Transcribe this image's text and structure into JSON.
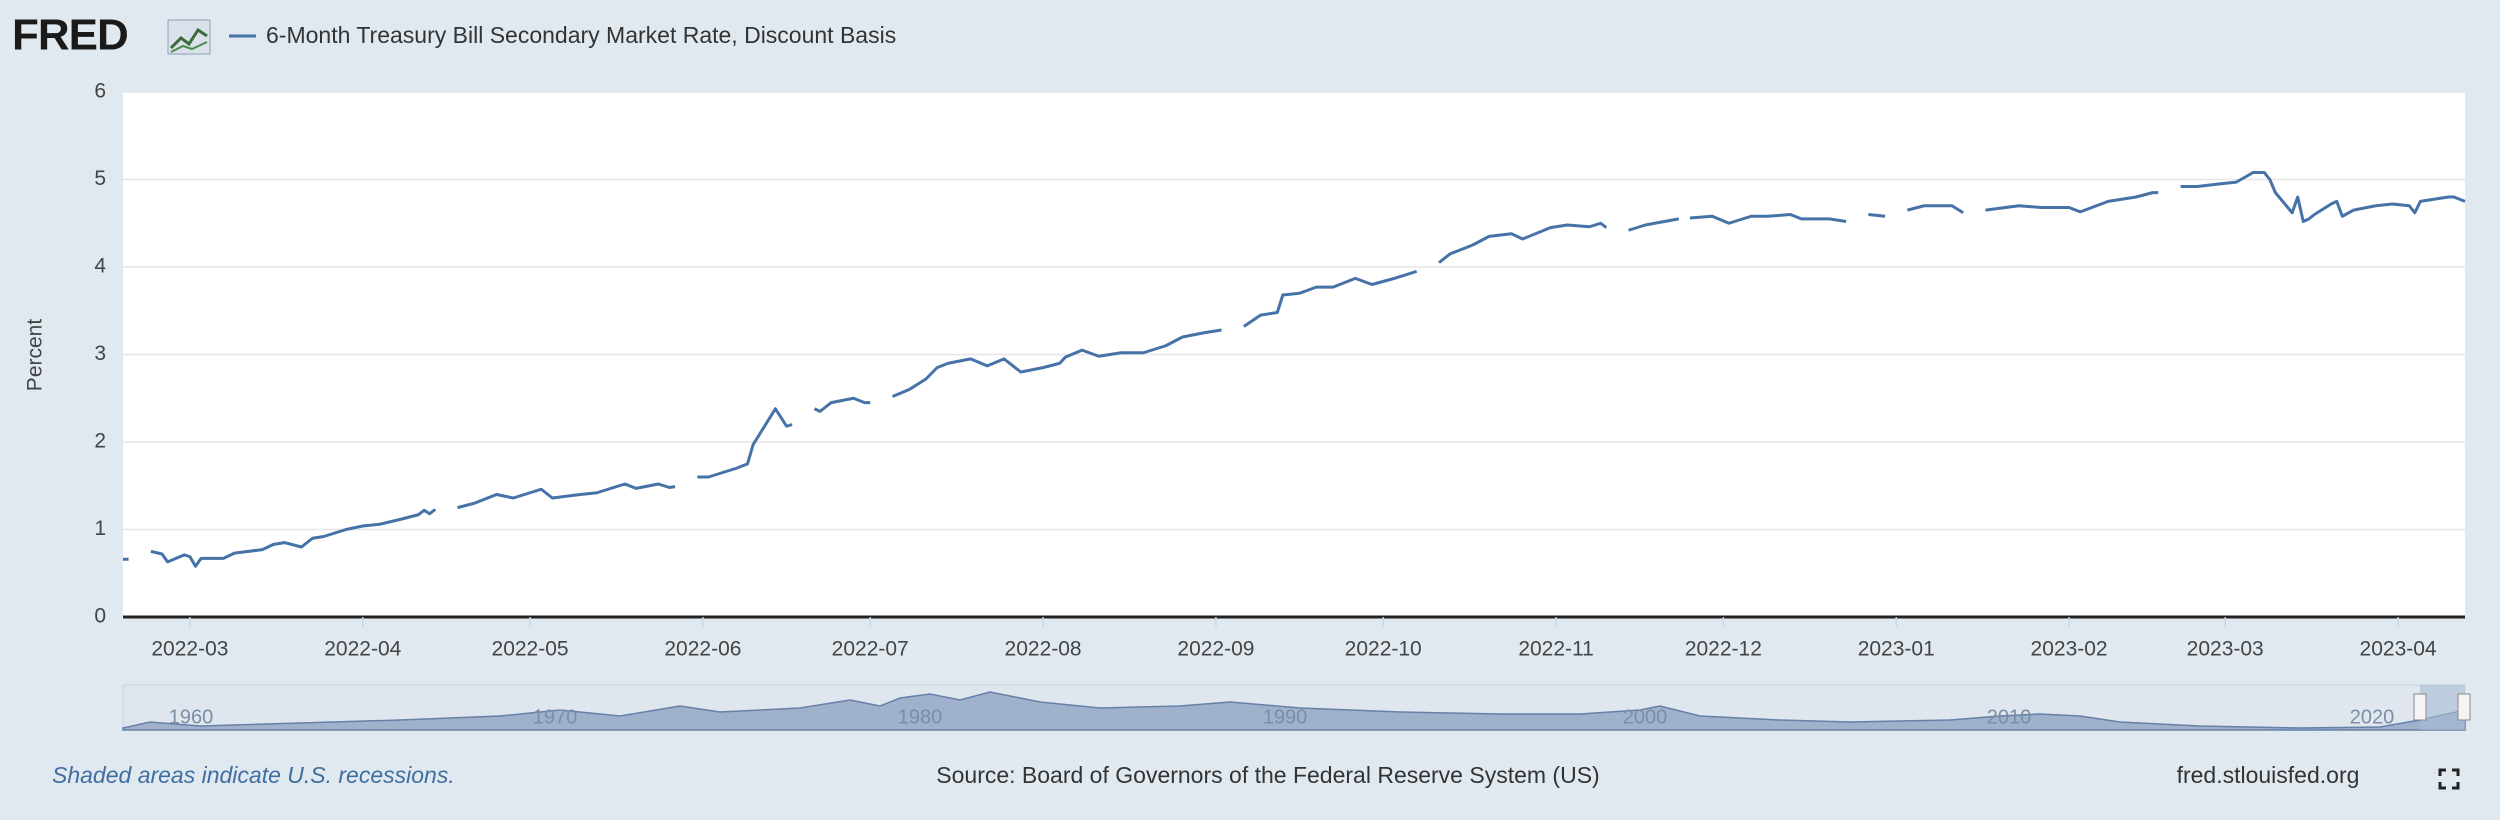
{
  "logo": "FRED",
  "footer": {
    "note": "Shaded areas indicate U.S. recessions.",
    "source": "Source: Board of Governors of the Federal Reserve System (US)",
    "site": "fred.stlouisfed.org"
  },
  "navigator": {
    "labels": [
      "1960",
      "1970",
      "1980",
      "1990",
      "2000",
      "2010",
      "2020"
    ]
  },
  "chart_data": {
    "type": "line",
    "y_label": "Percent",
    "grid": true,
    "xlim": [
      "2022-02-17",
      "2023-04-13"
    ],
    "xticks": [
      {
        "value": "2022-03",
        "label": "2022-03"
      },
      {
        "value": "2022-04",
        "label": "2022-04"
      },
      {
        "value": "2022-05",
        "label": "2022-05"
      },
      {
        "value": "2022-06",
        "label": "2022-06"
      },
      {
        "value": "2022-07",
        "label": "2022-07"
      },
      {
        "value": "2022-08",
        "label": "2022-08"
      },
      {
        "value": "2022-09",
        "label": "2022-09"
      },
      {
        "value": "2022-10",
        "label": "2022-10"
      },
      {
        "value": "2022-11",
        "label": "2022-11"
      },
      {
        "value": "2022-12",
        "label": "2022-12"
      },
      {
        "value": "2023-01",
        "label": "2023-01"
      },
      {
        "value": "2023-02",
        "label": "2023-02"
      },
      {
        "value": "2023-03",
        "label": "2023-03"
      },
      {
        "value": "2023-04",
        "label": "2023-04"
      }
    ],
    "ylim": [
      0,
      6
    ],
    "yticks": [
      0,
      1,
      2,
      3,
      4,
      5,
      6
    ],
    "x": [
      "2022-02-17",
      "2022-02-18",
      "2022-02-21",
      "2022-02-22",
      "2022-02-24",
      "2022-02-25",
      "2022-02-28",
      "2022-03-01",
      "2022-03-02",
      "2022-03-03",
      "2022-03-07",
      "2022-03-09",
      "2022-03-14",
      "2022-03-16",
      "2022-03-18",
      "2022-03-21",
      "2022-03-23",
      "2022-03-25",
      "2022-03-29",
      "2022-04-01",
      "2022-04-04",
      "2022-04-08",
      "2022-04-11",
      "2022-04-12",
      "2022-04-13",
      "2022-04-14",
      "2022-04-15",
      "2022-04-18",
      "2022-04-21",
      "2022-04-25",
      "2022-04-28",
      "2022-05-03",
      "2022-05-05",
      "2022-05-10",
      "2022-05-13",
      "2022-05-18",
      "2022-05-20",
      "2022-05-24",
      "2022-05-26",
      "2022-05-27",
      "2022-05-30",
      "2022-05-31",
      "2022-06-02",
      "2022-06-07",
      "2022-06-09",
      "2022-06-10",
      "2022-06-14",
      "2022-06-16",
      "2022-06-17",
      "2022-06-20",
      "2022-06-21",
      "2022-06-22",
      "2022-06-24",
      "2022-06-28",
      "2022-06-30",
      "2022-07-01",
      "2022-07-04",
      "2022-07-05",
      "2022-07-08",
      "2022-07-11",
      "2022-07-13",
      "2022-07-15",
      "2022-07-19",
      "2022-07-22",
      "2022-07-25",
      "2022-07-28",
      "2022-08-01",
      "2022-08-04",
      "2022-08-05",
      "2022-08-08",
      "2022-08-11",
      "2022-08-15",
      "2022-08-19",
      "2022-08-23",
      "2022-08-26",
      "2022-08-30",
      "2022-09-02",
      "2022-09-05",
      "2022-09-06",
      "2022-09-09",
      "2022-09-12",
      "2022-09-13",
      "2022-09-16",
      "2022-09-19",
      "2022-09-22",
      "2022-09-26",
      "2022-09-29",
      "2022-10-03",
      "2022-10-07",
      "2022-10-10",
      "2022-10-11",
      "2022-10-13",
      "2022-10-17",
      "2022-10-20",
      "2022-10-24",
      "2022-10-26",
      "2022-10-31",
      "2022-11-03",
      "2022-11-07",
      "2022-11-09",
      "2022-11-10",
      "2022-11-11",
      "2022-11-14",
      "2022-11-17",
      "2022-11-23",
      "2022-11-24",
      "2022-11-25",
      "2022-11-29",
      "2022-12-02",
      "2022-12-06",
      "2022-12-09",
      "2022-12-13",
      "2022-12-15",
      "2022-12-20",
      "2022-12-23",
      "2022-12-26",
      "2022-12-27",
      "2022-12-30",
      "2023-01-02",
      "2023-01-03",
      "2023-01-06",
      "2023-01-11",
      "2023-01-13",
      "2023-01-16",
      "2023-01-17",
      "2023-01-23",
      "2023-01-27",
      "2023-02-01",
      "2023-02-03",
      "2023-02-08",
      "2023-02-13",
      "2023-02-16",
      "2023-02-17",
      "2023-02-20",
      "2023-02-21",
      "2023-02-24",
      "2023-02-28",
      "2023-03-03",
      "2023-03-06",
      "2023-03-08",
      "2023-03-09",
      "2023-03-10",
      "2023-03-13",
      "2023-03-14",
      "2023-03-15",
      "2023-03-16",
      "2023-03-17",
      "2023-03-20",
      "2023-03-21",
      "2023-03-22",
      "2023-03-24",
      "2023-03-28",
      "2023-03-31",
      "2023-04-03",
      "2023-04-04",
      "2023-04-05",
      "2023-04-07",
      "2023-04-10",
      "2023-04-11",
      "2023-04-13"
    ],
    "series": [
      {
        "name": "6-Month Treasury Bill Secondary Market Rate, Discount Basis",
        "color": "#4572a7",
        "values": [
          0.66,
          0.66,
          null,
          0.75,
          0.72,
          0.63,
          0.71,
          0.69,
          0.58,
          0.67,
          0.67,
          0.73,
          0.77,
          0.83,
          0.85,
          0.8,
          0.9,
          0.92,
          1.0,
          1.04,
          1.06,
          1.12,
          1.17,
          1.22,
          1.18,
          1.23,
          null,
          1.25,
          1.3,
          1.4,
          1.36,
          1.46,
          1.36,
          1.4,
          1.42,
          1.52,
          1.47,
          1.52,
          1.48,
          1.49,
          null,
          1.6,
          1.6,
          1.7,
          1.75,
          1.97,
          2.38,
          2.18,
          2.2,
          null,
          2.38,
          2.35,
          2.45,
          2.5,
          2.45,
          2.45,
          null,
          2.52,
          2.6,
          2.72,
          2.85,
          2.9,
          2.95,
          2.87,
          2.95,
          2.8,
          2.85,
          2.9,
          2.97,
          3.05,
          2.98,
          3.02,
          3.02,
          3.1,
          3.2,
          3.25,
          3.28,
          null,
          3.32,
          3.45,
          3.48,
          3.68,
          3.7,
          3.77,
          3.77,
          3.87,
          3.8,
          3.87,
          3.95,
          null,
          4.05,
          4.15,
          4.25,
          4.35,
          4.38,
          4.32,
          4.45,
          4.48,
          4.46,
          4.5,
          4.45,
          null,
          4.42,
          4.48,
          4.55,
          null,
          4.56,
          4.58,
          4.5,
          4.58,
          4.58,
          4.6,
          4.55,
          4.55,
          4.52,
          null,
          4.6,
          4.58,
          null,
          4.65,
          4.7,
          4.7,
          4.62,
          null,
          4.65,
          4.7,
          4.68,
          4.68,
          4.63,
          4.75,
          4.8,
          4.85,
          4.85,
          null,
          4.92,
          4.92,
          4.95,
          4.97,
          5.08,
          5.08,
          5.0,
          4.85,
          4.62,
          4.8,
          4.52,
          4.55,
          4.6,
          4.72,
          4.75,
          4.58,
          4.65,
          4.7,
          4.72,
          4.7,
          4.62,
          4.75,
          4.77,
          4.8,
          4.8,
          4.75
        ]
      }
    ]
  }
}
